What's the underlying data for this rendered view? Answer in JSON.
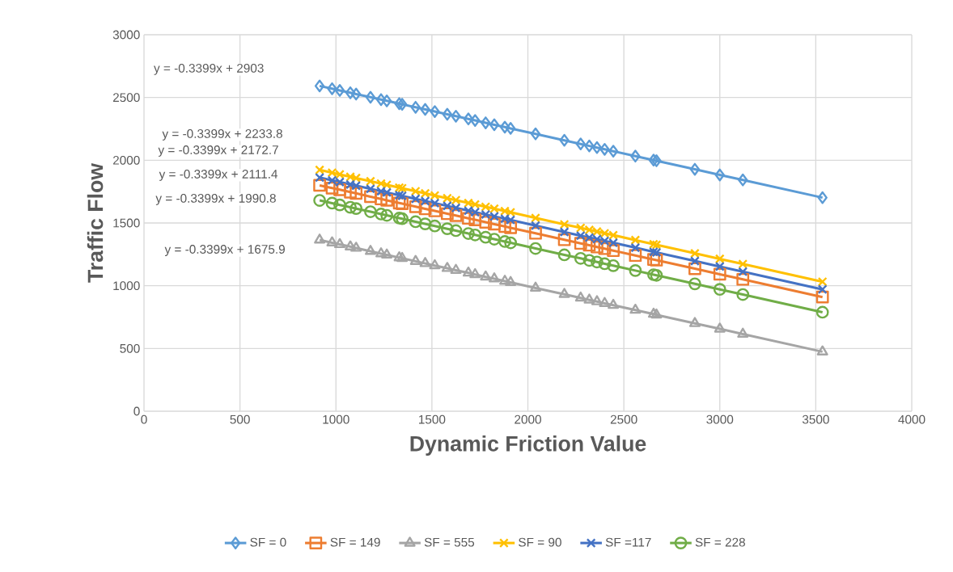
{
  "chart_data": {
    "type": "line",
    "xlabel": "Dynamic Friction Value",
    "ylabel": "Traffic Flow",
    "x": [
      915,
      980,
      1020,
      1075,
      1105,
      1180,
      1235,
      1265,
      1330,
      1345,
      1415,
      1465,
      1515,
      1580,
      1625,
      1690,
      1725,
      1780,
      1825,
      1880,
      1910,
      2040,
      2190,
      2275,
      2320,
      2360,
      2400,
      2445,
      2560,
      2655,
      2670,
      2870,
      3000,
      3120,
      3535
    ],
    "series": [
      {
        "name": "SF = 0",
        "color": "#5b9bd5",
        "marker": "diamond",
        "values": [
          2592,
          2570,
          2556,
          2538,
          2527,
          2502,
          2483,
          2473,
          2451,
          2446,
          2422,
          2405,
          2388,
          2366,
          2351,
          2329,
          2317,
          2298,
          2283,
          2264,
          2254,
          2210,
          2159,
          2130,
          2114,
          2101,
          2087,
          2072,
          2033,
          2001,
          1996,
          1928,
          1883,
          1843,
          1702
        ]
      },
      {
        "name": "SF = 149",
        "color": "#ed7d31",
        "marker": "square",
        "values": [
          1800,
          1778,
          1765,
          1746,
          1736,
          1710,
          1692,
          1681,
          1659,
          1654,
          1630,
          1613,
          1597,
          1574,
          1559,
          1537,
          1525,
          1506,
          1491,
          1472,
          1462,
          1418,
          1367,
          1338,
          1323,
          1309,
          1296,
          1280,
          1241,
          1209,
          1204,
          1136,
          1092,
          1051,
          910
        ]
      },
      {
        "name": "SF = 555",
        "color": "#a5a5a5",
        "marker": "triangle",
        "values": [
          1365,
          1343,
          1329,
          1311,
          1300,
          1275,
          1256,
          1246,
          1224,
          1219,
          1195,
          1178,
          1161,
          1139,
          1124,
          1102,
          1090,
          1071,
          1056,
          1037,
          1027,
          982,
          932,
          903,
          887,
          874,
          860,
          845,
          806,
          774,
          768,
          700,
          656,
          615,
          474
        ]
      },
      {
        "name": "SF = 90",
        "color": "#ffc000",
        "marker": "cross",
        "values": [
          1923,
          1901,
          1887,
          1868,
          1858,
          1833,
          1814,
          1804,
          1782,
          1777,
          1753,
          1736,
          1719,
          1697,
          1682,
          1659,
          1648,
          1629,
          1614,
          1595,
          1585,
          1540,
          1489,
          1461,
          1445,
          1432,
          1418,
          1403,
          1364,
          1331,
          1326,
          1258,
          1214,
          1173,
          1032
        ]
      },
      {
        "name": "SF =117",
        "color": "#4472c4",
        "marker": "cross",
        "values": [
          1862,
          1840,
          1826,
          1807,
          1797,
          1772,
          1753,
          1743,
          1721,
          1716,
          1692,
          1675,
          1658,
          1636,
          1620,
          1598,
          1586,
          1568,
          1552,
          1534,
          1524,
          1479,
          1428,
          1399,
          1384,
          1371,
          1357,
          1342,
          1303,
          1270,
          1265,
          1197,
          1153,
          1112,
          971
        ]
      },
      {
        "name": "SF = 228",
        "color": "#70ad47",
        "marker": "circle",
        "values": [
          1680,
          1658,
          1644,
          1625,
          1615,
          1590,
          1571,
          1561,
          1539,
          1534,
          1510,
          1493,
          1476,
          1454,
          1439,
          1416,
          1405,
          1386,
          1371,
          1352,
          1342,
          1297,
          1246,
          1218,
          1202,
          1189,
          1175,
          1160,
          1121,
          1088,
          1083,
          1015,
          971,
          930,
          789
        ]
      }
    ],
    "annotations": [
      "y = -0.3399x + 2903",
      "y = -0.3399x + 2233.8",
      "y = -0.3399x + 2172.7",
      "y = -0.3399x + 2111.4",
      "y = -0.3399x + 1990.8",
      "y = -0.3399x + 1675.9"
    ],
    "xlim": [
      0,
      4000
    ],
    "ylim": [
      0,
      3000
    ],
    "xticks": [
      0,
      500,
      1000,
      1500,
      2000,
      2500,
      3000,
      3500,
      4000
    ],
    "yticks": [
      0,
      500,
      1000,
      1500,
      2000,
      2500,
      3000
    ],
    "grid": true,
    "legend": "bottom"
  }
}
